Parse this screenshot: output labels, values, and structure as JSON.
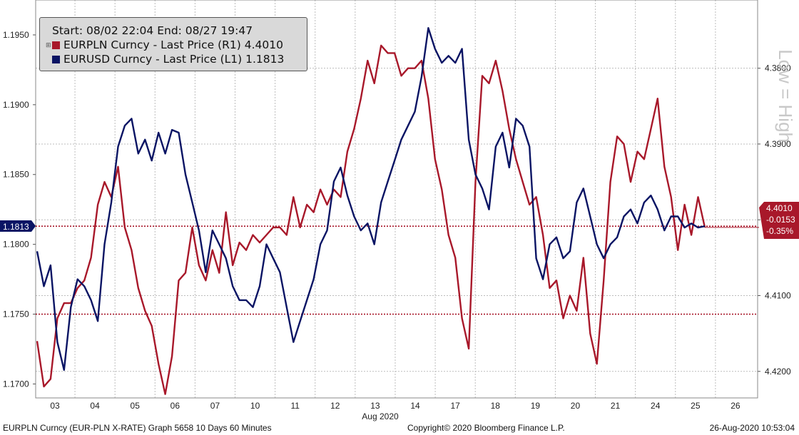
{
  "legend": {
    "range": "Start: 08/02 22:04 End: 08/27 19:47",
    "series1": "EURPLN Curncy - Last Price (R1) 4.4010",
    "series2": "EURUSD Curncy - Last Price (L1) 1.1813",
    "color1": "#a8182a",
    "color2": "#0a1464"
  },
  "markers": {
    "left_value": "1.1813",
    "right_value": "4.4010",
    "right_change": "-0.0153",
    "right_pct": "-0.35%"
  },
  "side_label": "Low = High",
  "footer": {
    "left": "EURPLN Curncy (EUR-PLN X-RATE) Graph 5658 10 Days 60 Minutes",
    "center": "Copyright© 2020 Bloomberg Finance L.P.",
    "right": "26-Aug-2020 10:53:04"
  },
  "chart_data": {
    "type": "line",
    "xlabel": "Aug 2020",
    "x_ticks": [
      "03",
      "04",
      "05",
      "06",
      "07",
      "10",
      "11",
      "12",
      "13",
      "14",
      "17",
      "18",
      "19",
      "20",
      "21",
      "24",
      "25",
      "26"
    ],
    "left_axis": {
      "ticks": [
        "1.1700",
        "1.1750",
        "1.1800",
        "1.1850",
        "1.1900",
        "1.1950"
      ],
      "range": [
        1.169,
        1.1975
      ]
    },
    "right_axis": {
      "ticks": [
        "4.4200",
        "4.4100",
        "4.4000",
        "4.3900",
        "4.3800"
      ],
      "range": [
        4.4235,
        4.371
      ],
      "inverted": true
    },
    "grid": true,
    "hlines_left": [
      1.1813,
      1.175
    ],
    "series": [
      {
        "name": "EURPLN Curncy - Last Price (R1)",
        "axis": "right",
        "color": "#a8182a",
        "values": [
          4.416,
          4.422,
          4.421,
          4.413,
          4.411,
          4.411,
          4.409,
          4.408,
          4.405,
          4.398,
          4.395,
          4.397,
          4.393,
          4.401,
          4.404,
          4.409,
          4.412,
          4.414,
          4.419,
          4.423,
          4.418,
          4.408,
          4.407,
          4.401,
          4.406,
          4.408,
          4.404,
          4.407,
          4.399,
          4.406,
          4.403,
          4.404,
          4.402,
          4.403,
          4.402,
          4.401,
          4.401,
          4.402,
          4.397,
          4.401,
          4.398,
          4.399,
          4.396,
          4.398,
          4.396,
          4.397,
          4.391,
          4.388,
          4.384,
          4.379,
          4.382,
          4.377,
          4.378,
          4.378,
          4.381,
          4.38,
          4.38,
          4.379,
          4.384,
          4.392,
          4.396,
          4.402,
          4.405,
          4.413,
          4.417,
          4.395,
          4.381,
          4.382,
          4.379,
          4.383,
          4.388,
          4.392,
          4.395,
          4.398,
          4.397,
          4.402,
          4.409,
          4.408,
          4.413,
          4.41,
          4.412,
          4.405,
          4.415,
          4.419,
          4.408,
          4.395,
          4.389,
          4.39,
          4.395,
          4.391,
          4.392,
          4.388,
          4.384,
          4.393,
          4.397,
          4.404,
          4.398,
          4.402,
          4.397,
          4.401
        ]
      },
      {
        "name": "EURUSD Curncy - Last Price (L1)",
        "axis": "left",
        "color": "#0a1464",
        "values": [
          1.1795,
          1.177,
          1.1785,
          1.173,
          1.171,
          1.1755,
          1.1775,
          1.177,
          1.176,
          1.1745,
          1.18,
          1.183,
          1.187,
          1.1885,
          1.189,
          1.1865,
          1.1875,
          1.186,
          1.188,
          1.1865,
          1.1882,
          1.188,
          1.185,
          1.183,
          1.181,
          1.178,
          1.181,
          1.18,
          1.179,
          1.177,
          1.176,
          1.176,
          1.1755,
          1.177,
          1.18,
          1.179,
          1.178,
          1.1755,
          1.173,
          1.1745,
          1.176,
          1.1775,
          1.18,
          1.181,
          1.1845,
          1.1855,
          1.1835,
          1.182,
          1.181,
          1.1815,
          1.18,
          1.183,
          1.1845,
          1.186,
          1.1875,
          1.1885,
          1.1895,
          1.192,
          1.1955,
          1.194,
          1.193,
          1.1935,
          1.193,
          1.194,
          1.1875,
          1.185,
          1.184,
          1.1825,
          1.187,
          1.188,
          1.1855,
          1.189,
          1.1885,
          1.187,
          1.179,
          1.1775,
          1.18,
          1.1805,
          1.179,
          1.1795,
          1.183,
          1.184,
          1.182,
          1.18,
          1.179,
          1.18,
          1.1805,
          1.182,
          1.1825,
          1.1815,
          1.183,
          1.1835,
          1.1825,
          1.181,
          1.182,
          1.182,
          1.1812,
          1.1815,
          1.1812,
          1.1813
        ]
      }
    ]
  }
}
